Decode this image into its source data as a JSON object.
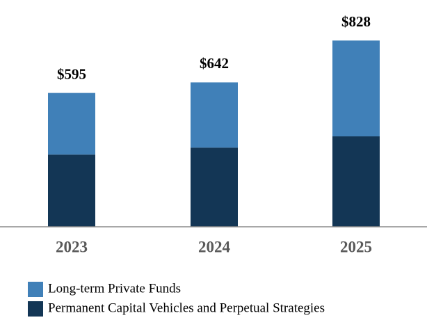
{
  "chart_data": {
    "type": "stacked_bar",
    "categories": [
      "2023",
      "2024",
      "2025"
    ],
    "series": [
      {
        "name": "Permanent Capital Vehicles and Perpetual Strategies",
        "color": "#133655",
        "values": [
          321,
          352,
          402
        ]
      },
      {
        "name": "Long-term Private Funds",
        "color": "#4080b8",
        "values": [
          274,
          290,
          426
        ]
      }
    ],
    "totals": [
      595,
      642,
      828
    ],
    "total_labels": [
      "$595",
      "$642",
      "$828"
    ],
    "ylim": [
      0,
      900
    ]
  }
}
